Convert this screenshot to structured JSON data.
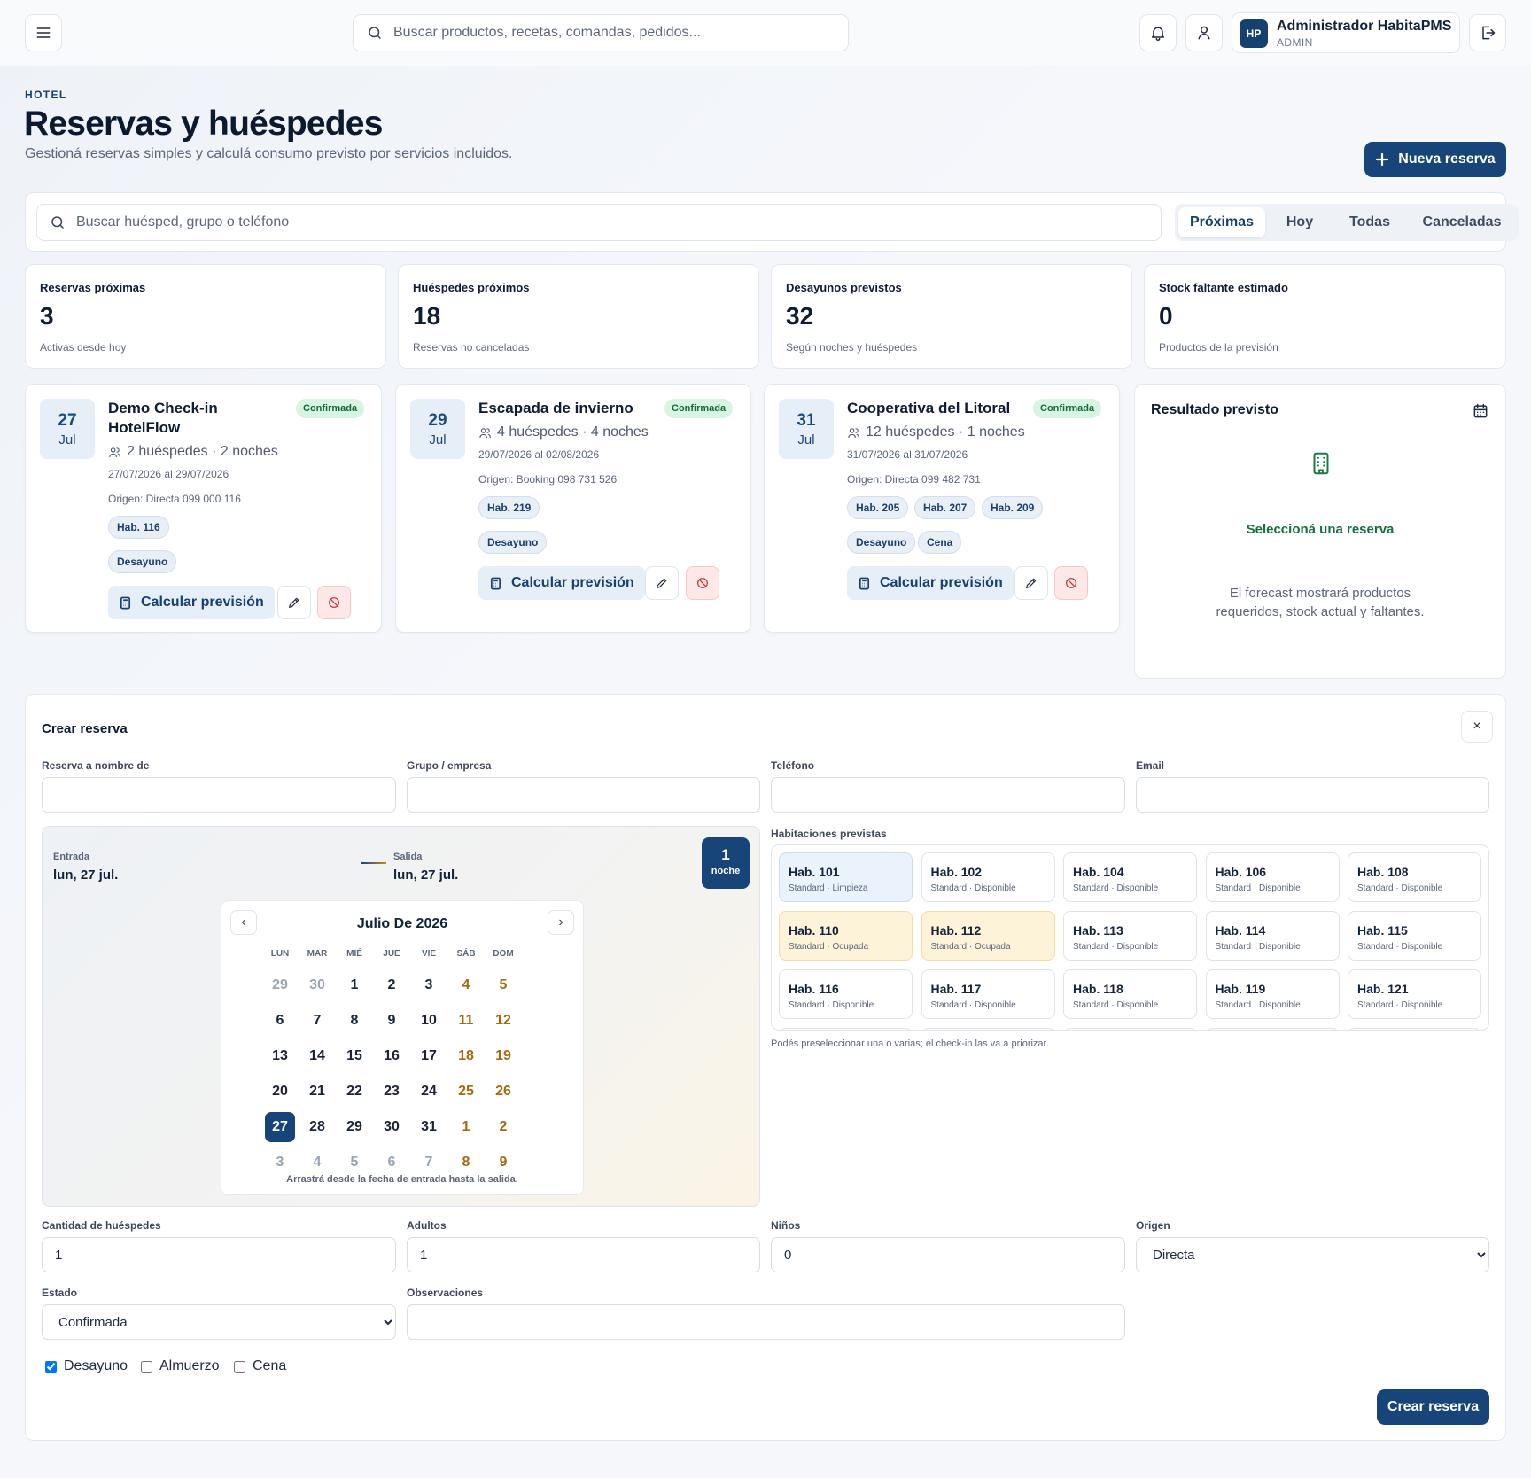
{
  "topbar": {
    "search_placeholder": "Buscar productos, recetas, comandas, pedidos...",
    "user": {
      "initials": "HP",
      "name": "Administrador HabitaPMS",
      "role": "ADMIN"
    },
    "icons": [
      "menu-icon",
      "search-icon",
      "bell-icon",
      "user-icon",
      "logout-icon"
    ]
  },
  "header": {
    "eyebrow": "HOTEL",
    "title": "Reservas y huéspedes",
    "subtitle": "Gestioná reservas simples y calculá consumo previsto por servicios incluidos.",
    "new_button": "Nueva reserva"
  },
  "filters": {
    "search_placeholder": "Buscar huésped, grupo o teléfono",
    "tabs": [
      {
        "label": "Próximas",
        "active": true
      },
      {
        "label": "Hoy",
        "active": false
      },
      {
        "label": "Todas",
        "active": false
      },
      {
        "label": "Canceladas",
        "active": false
      }
    ]
  },
  "stats": [
    {
      "label": "Reservas próximas",
      "value": "3",
      "note": "Activas desde hoy"
    },
    {
      "label": "Huéspedes próximos",
      "value": "18",
      "note": "Reservas no canceladas"
    },
    {
      "label": "Desayunos previstos",
      "value": "32",
      "note": "Según noches y huéspedes"
    },
    {
      "label": "Stock faltante estimado",
      "value": "0",
      "note": "Productos de la previsión"
    }
  ],
  "reservations": [
    {
      "day": "27",
      "month": "Jul",
      "title_line1": "Demo Check-in",
      "title_line2": "HotelFlow",
      "status": "Confirmada",
      "guests": "2 huéspedes · 2 noches",
      "dates": "27/07/2026 al 29/07/2026",
      "origin": "Origen: Directa  099 000 116",
      "rooms": [
        "Hab. 116"
      ],
      "services": [
        "Desayuno"
      ],
      "calc_button": "Calcular previsión"
    },
    {
      "day": "29",
      "month": "Jul",
      "title_line1": "Escapada de invierno",
      "title_line2": "",
      "status": "Confirmada",
      "guests": "4 huéspedes · 4 noches",
      "dates": "29/07/2026 al 02/08/2026",
      "origin": "Origen: Booking  098 731 526",
      "rooms": [
        "Hab. 219"
      ],
      "services": [
        "Desayuno"
      ],
      "calc_button": "Calcular previsión"
    },
    {
      "day": "31",
      "month": "Jul",
      "title_line1": "Cooperativa del Litoral",
      "title_line2": "",
      "status": "Confirmada",
      "guests": "12 huéspedes · 1 noches",
      "dates": "31/07/2026 al 31/07/2026",
      "origin": "Origen: Directa  099 482 731",
      "rooms": [
        "Hab. 205",
        "Hab. 207",
        "Hab. 209"
      ],
      "services": [
        "Desayuno",
        "Cena"
      ],
      "calc_button": "Calcular previsión"
    }
  ],
  "forecast": {
    "title": "Resultado previsto",
    "message": "Seleccioná una reserva",
    "description_line1": "El forecast mostrará productos",
    "description_line2": "requeridos, stock actual y faltantes."
  },
  "form": {
    "title": "Crear reserva",
    "close": "×",
    "fields": {
      "name": {
        "label": "Reserva a nombre de",
        "value": ""
      },
      "group": {
        "label": "Grupo / empresa",
        "value": ""
      },
      "phone": {
        "label": "Teléfono",
        "value": ""
      },
      "email": {
        "label": "Email",
        "value": ""
      },
      "guests": {
        "label": "Cantidad de huéspedes",
        "value": "1"
      },
      "adults": {
        "label": "Adultos",
        "value": "1"
      },
      "children": {
        "label": "Niños",
        "value": "0"
      },
      "origin": {
        "label": "Origen",
        "value": "Directa"
      },
      "status": {
        "label": "Estado",
        "value": "Confirmada"
      },
      "notes": {
        "label": "Observaciones",
        "value": ""
      }
    },
    "dates": {
      "entry_label": "Entrada",
      "entry_value": "lun, 27 jul.",
      "exit_label": "Salida",
      "exit_value": "lun, 27 jul.",
      "nights_count": "1",
      "nights_label": "noche"
    },
    "calendar": {
      "month": "Julio De 2026",
      "prev": "‹",
      "next": "›",
      "weekdays": [
        "LUN",
        "MAR",
        "MIÉ",
        "JUE",
        "VIE",
        "SÁB",
        "DOM"
      ],
      "weeks": [
        [
          "29",
          "30",
          "1",
          "2",
          "3",
          "4",
          "5"
        ],
        [
          "6",
          "7",
          "8",
          "9",
          "10",
          "11",
          "12"
        ],
        [
          "13",
          "14",
          "15",
          "16",
          "17",
          "18",
          "19"
        ],
        [
          "20",
          "21",
          "22",
          "23",
          "24",
          "25",
          "26"
        ],
        [
          "27",
          "28",
          "29",
          "30",
          "31",
          "1",
          "2"
        ],
        [
          "3",
          "4",
          "5",
          "6",
          "7",
          "8",
          "9"
        ]
      ],
      "selected": "27",
      "hint": "Arrastrá desde la fecha de entrada hasta la salida."
    },
    "rooms_label": "Habitaciones previstas",
    "rooms": [
      {
        "name": "Hab. 101",
        "status": "Standard · Limpieza",
        "state": "limpieza"
      },
      {
        "name": "Hab. 102",
        "status": "Standard · Disponible",
        "state": "disponible"
      },
      {
        "name": "Hab. 104",
        "status": "Standard · Disponible",
        "state": "disponible"
      },
      {
        "name": "Hab. 106",
        "status": "Standard · Disponible",
        "state": "disponible"
      },
      {
        "name": "Hab. 108",
        "status": "Standard · Disponible",
        "state": "disponible"
      },
      {
        "name": "Hab. 110",
        "status": "Standard · Ocupada",
        "state": "ocupada"
      },
      {
        "name": "Hab. 112",
        "status": "Standard · Ocupada",
        "state": "ocupada"
      },
      {
        "name": "Hab. 113",
        "status": "Standard · Disponible",
        "state": "disponible"
      },
      {
        "name": "Hab. 114",
        "status": "Standard · Disponible",
        "state": "disponible"
      },
      {
        "name": "Hab. 115",
        "status": "Standard · Disponible",
        "state": "disponible"
      },
      {
        "name": "Hab. 116",
        "status": "Standard · Disponible",
        "state": "disponible"
      },
      {
        "name": "Hab. 117",
        "status": "Standard · Disponible",
        "state": "disponible"
      },
      {
        "name": "Hab. 118",
        "status": "Standard · Disponible",
        "state": "disponible"
      },
      {
        "name": "Hab. 119",
        "status": "Standard · Disponible",
        "state": "disponible"
      },
      {
        "name": "Hab. 121",
        "status": "Standard · Disponible",
        "state": "disponible"
      }
    ],
    "rooms_hint": "Podés preseleccionar una o varias; el check-in las va a priorizar.",
    "services": [
      {
        "label": "Desayuno",
        "checked": true
      },
      {
        "label": "Almuerzo",
        "checked": false
      },
      {
        "label": "Cena",
        "checked": false
      }
    ],
    "submit": "Crear reserva"
  },
  "colors": {
    "primary": "#17457a",
    "success": "#156b39",
    "danger": "#c53030",
    "weekend": "#a56a10"
  }
}
